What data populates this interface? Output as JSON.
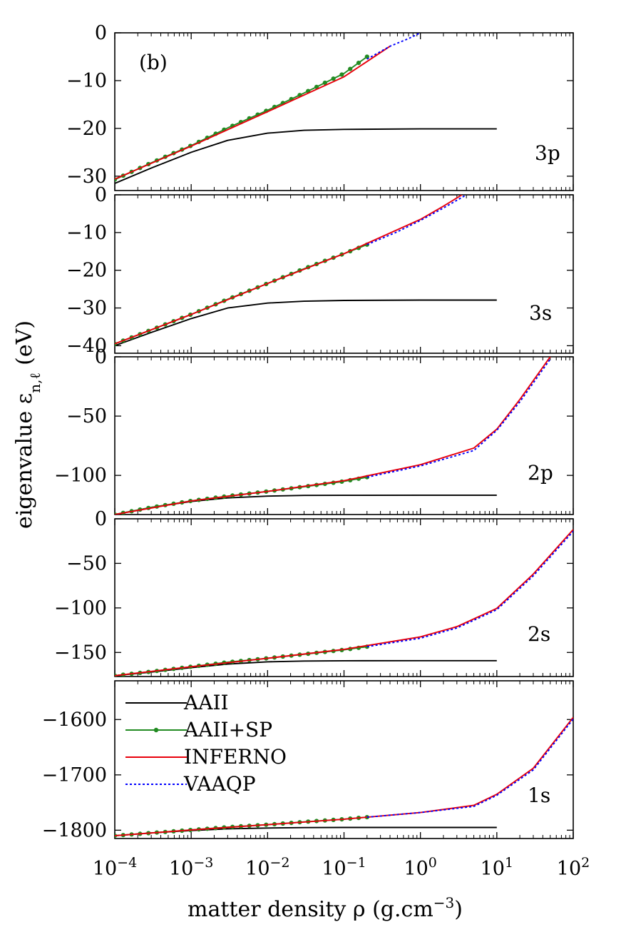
{
  "figure": {
    "panel_tag": "(b)",
    "ylabel": "eigenvalue ε",
    "ylabel_sub": "n,ℓ",
    "ylabel_unit": "(eV)",
    "xlabel": "matter density ρ (g.cm",
    "xlabel_sup": "−3",
    "xlabel_end": ")",
    "xtick_base": "10",
    "xtick_exponents": [
      "−4",
      "−3",
      "−2",
      "−1",
      "0",
      "1",
      "2"
    ]
  },
  "legend": {
    "items": [
      {
        "label": "AAII",
        "color": "#000000",
        "style": "solid"
      },
      {
        "label": "AAII+SP",
        "color": "#228b22",
        "style": "solid-dots"
      },
      {
        "label": "INFERNO",
        "color": "#e8000b",
        "style": "solid"
      },
      {
        "label": "VAAQP",
        "color": "#0000ff",
        "style": "dotted"
      }
    ]
  },
  "chart_data": [
    {
      "type": "line",
      "panel": "3p",
      "xscale": "log",
      "xlim": [
        0.0001,
        100
      ],
      "ylim": [
        -33,
        0
      ],
      "yticks": [
        0,
        -10,
        -20,
        -30
      ],
      "ytick_labels": [
        "0",
        "−10",
        "−20",
        "−30"
      ],
      "series": [
        {
          "name": "AAII",
          "x": [
            0.0001,
            0.0003,
            0.001,
            0.003,
            0.01,
            0.03,
            0.1,
            1,
            10
          ],
          "y": [
            -31.5,
            -28.3,
            -25.0,
            -22.5,
            -21.0,
            -20.4,
            -20.2,
            -20.1,
            -20.1
          ]
        },
        {
          "name": "AAII+SP",
          "x": [
            0.0001,
            0.0003,
            0.001,
            0.003,
            0.01,
            0.03,
            0.1,
            0.2
          ],
          "y": [
            -30.7,
            -27.2,
            -23.6,
            -19.9,
            -16.2,
            -12.6,
            -8.5,
            -5.0
          ]
        },
        {
          "name": "INFERNO",
          "x": [
            0.0001,
            0.001,
            0.01,
            0.1,
            0.4
          ],
          "y": [
            -30.6,
            -23.7,
            -16.5,
            -9.2,
            -2.8
          ]
        },
        {
          "name": "VAAQP",
          "x": [
            0.2,
            0.4,
            0.7,
            1.0
          ],
          "y": [
            -5.5,
            -2.8,
            -1.2,
            0.0
          ]
        }
      ]
    },
    {
      "type": "line",
      "panel": "3s",
      "xscale": "log",
      "xlim": [
        0.0001,
        100
      ],
      "ylim": [
        -42,
        0
      ],
      "yticks": [
        0,
        -10,
        -20,
        -30,
        -40
      ],
      "ytick_labels": [
        "0",
        "−10",
        "−20",
        "−30",
        "−40"
      ],
      "series": [
        {
          "name": "AAII",
          "x": [
            0.0001,
            0.0003,
            0.001,
            0.003,
            0.01,
            0.03,
            0.1,
            1,
            10
          ],
          "y": [
            -40.0,
            -36.5,
            -32.8,
            -30.0,
            -28.7,
            -28.2,
            -28.0,
            -27.9,
            -27.9
          ]
        },
        {
          "name": "AAII+SP",
          "x": [
            0.0001,
            0.0003,
            0.001,
            0.003,
            0.01,
            0.03,
            0.1,
            0.2
          ],
          "y": [
            -39.5,
            -35.8,
            -31.7,
            -27.7,
            -23.5,
            -19.6,
            -15.6,
            -13.2
          ]
        },
        {
          "name": "INFERNO",
          "x": [
            0.0001,
            0.001,
            0.01,
            0.1,
            1,
            2,
            3.5
          ],
          "y": [
            -39.5,
            -31.7,
            -23.5,
            -15.6,
            -6.5,
            -3.0,
            0.0
          ]
        },
        {
          "name": "VAAQP",
          "x": [
            0.2,
            0.5,
            1,
            2,
            4
          ],
          "y": [
            -13.2,
            -9.8,
            -6.8,
            -3.5,
            0.0
          ]
        }
      ]
    },
    {
      "type": "line",
      "panel": "2p",
      "xscale": "log",
      "xlim": [
        0.0001,
        100
      ],
      "ylim": [
        -133,
        0
      ],
      "yticks": [
        0,
        -50,
        -100
      ],
      "ytick_labels": [
        "0",
        "−50",
        "−100"
      ],
      "series": [
        {
          "name": "AAII",
          "x": [
            0.0001,
            0.0003,
            0.001,
            0.003,
            0.01,
            0.03,
            0.1,
            1,
            10
          ],
          "y": [
            -133,
            -127,
            -122,
            -119,
            -117.5,
            -116.9,
            -116.8,
            -116.7,
            -116.7
          ]
        },
        {
          "name": "AAII+SP",
          "x": [
            0.0001,
            0.0003,
            0.001,
            0.003,
            0.01,
            0.03,
            0.1,
            0.2
          ],
          "y": [
            -133,
            -127,
            -121.5,
            -117.5,
            -113.5,
            -109.5,
            -105,
            -101.5
          ]
        },
        {
          "name": "INFERNO",
          "x": [
            0.0001,
            0.001,
            0.01,
            0.1,
            1,
            5,
            10,
            20,
            50
          ],
          "y": [
            -133,
            -121.5,
            -113.5,
            -104.5,
            -91,
            -77,
            -61,
            -36,
            0
          ]
        },
        {
          "name": "VAAQP",
          "x": [
            0.2,
            1,
            5,
            10,
            20,
            50
          ],
          "y": [
            -101.5,
            -92,
            -79,
            -62,
            -38,
            -2
          ]
        }
      ]
    },
    {
      "type": "line",
      "panel": "2s",
      "xscale": "log",
      "xlim": [
        0.0001,
        100
      ],
      "ylim": [
        -177,
        0
      ],
      "yticks": [
        0,
        -50,
        -100,
        -150
      ],
      "ytick_labels": [
        "0",
        "−50",
        "−100",
        "−150"
      ],
      "series": [
        {
          "name": "AAII",
          "x": [
            0.0001,
            0.0003,
            0.001,
            0.003,
            0.01,
            0.03,
            0.1,
            1,
            10
          ],
          "y": [
            -176,
            -172,
            -167,
            -163,
            -160.5,
            -159.6,
            -159.3,
            -159.2,
            -159.2
          ]
        },
        {
          "name": "AAII+SP",
          "x": [
            0.0001,
            0.0003,
            0.001,
            0.003,
            0.01,
            0.03,
            0.1,
            0.2
          ],
          "y": [
            -176,
            -171.5,
            -166,
            -161,
            -156.5,
            -152,
            -147,
            -143.5
          ]
        },
        {
          "name": "INFERNO",
          "x": [
            0.0001,
            0.001,
            0.01,
            0.1,
            1,
            3,
            10,
            30,
            100
          ],
          "y": [
            -176,
            -166,
            -156.5,
            -146.5,
            -132.5,
            -121,
            -100.5,
            -62,
            -12
          ]
        },
        {
          "name": "VAAQP",
          "x": [
            0.2,
            1,
            3,
            10,
            30,
            100
          ],
          "y": [
            -143.5,
            -134,
            -122.5,
            -102,
            -64,
            -14
          ]
        }
      ]
    },
    {
      "type": "line",
      "panel": "1s",
      "xscale": "log",
      "xlim": [
        0.0001,
        100
      ],
      "ylim": [
        -1815,
        -1530
      ],
      "yticks": [
        -1600,
        -1700,
        -1800
      ],
      "ytick_labels": [
        "−1600",
        "−1700",
        "−1800"
      ],
      "series": [
        {
          "name": "AAII",
          "x": [
            0.0001,
            0.0003,
            0.001,
            0.003,
            0.01,
            0.03,
            0.1,
            1,
            10
          ],
          "y": [
            -1810,
            -1805,
            -1800.5,
            -1797.5,
            -1796,
            -1795.3,
            -1795,
            -1795,
            -1795
          ]
        },
        {
          "name": "AAII+SP",
          "x": [
            0.0001,
            0.0003,
            0.001,
            0.003,
            0.01,
            0.03,
            0.1,
            0.2
          ],
          "y": [
            -1810,
            -1805,
            -1799.5,
            -1794.5,
            -1790,
            -1785,
            -1780,
            -1776.5
          ]
        },
        {
          "name": "INFERNO",
          "x": [
            0.0001,
            0.001,
            0.01,
            0.1,
            1,
            5,
            10,
            30,
            100
          ],
          "y": [
            -1810,
            -1799.5,
            -1790,
            -1780,
            -1768,
            -1755,
            -1735,
            -1688,
            -1596
          ]
        },
        {
          "name": "VAAQP",
          "x": [
            0.2,
            1,
            5,
            10,
            30,
            100
          ],
          "y": [
            -1776.5,
            -1768,
            -1757,
            -1737,
            -1691,
            -1599
          ]
        }
      ]
    }
  ]
}
